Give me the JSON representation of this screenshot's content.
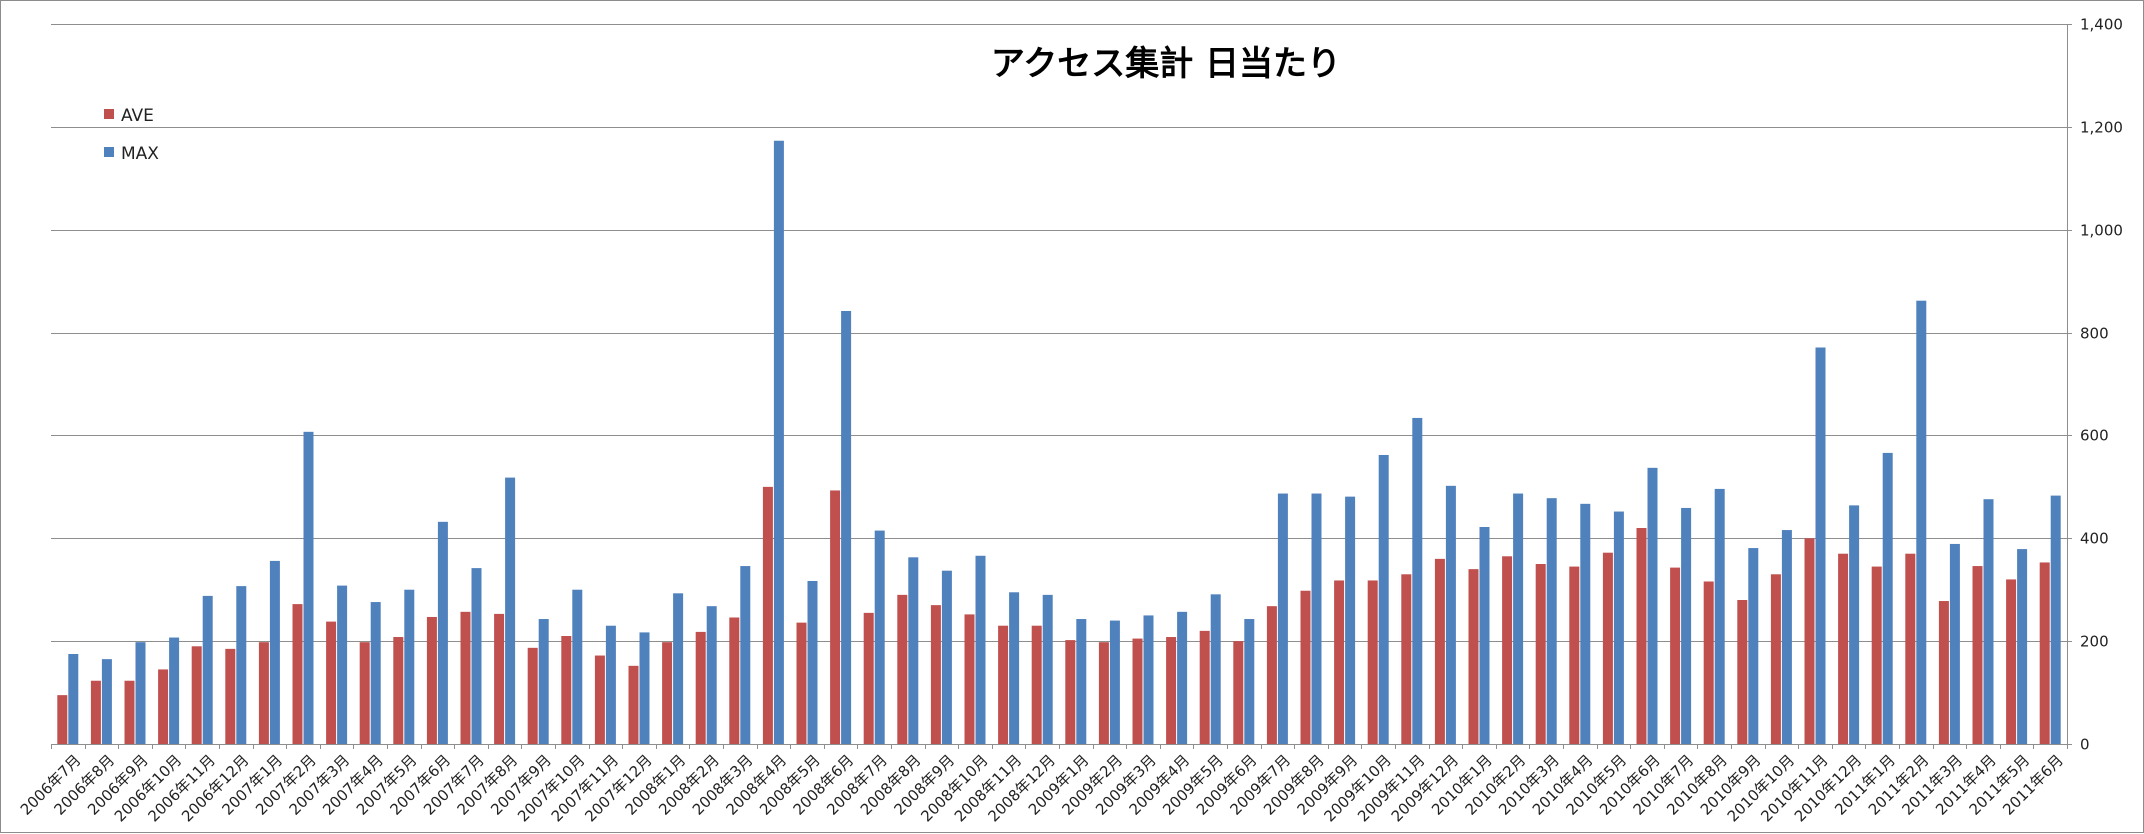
{
  "chart_data": {
    "type": "bar",
    "title": "アクセス集計 日当たり",
    "xlabel": "",
    "ylabel": "",
    "ylim": [
      0,
      1400
    ],
    "ytick_values": [
      0,
      200,
      400,
      600,
      800,
      1000,
      1200,
      1400
    ],
    "ytick_labels": [
      "0",
      "200",
      "400",
      "600",
      "800",
      "1,000",
      "1,200",
      "1,400"
    ],
    "grid": true,
    "legend_position": "top-left",
    "y_axis_side": "right",
    "categories": [
      "2006年7月",
      "2006年8月",
      "2006年9月",
      "2006年10月",
      "2006年11月",
      "2006年12月",
      "2007年1月",
      "2007年2月",
      "2007年3月",
      "2007年4月",
      "2007年5月",
      "2007年6月",
      "2007年7月",
      "2007年8月",
      "2007年9月",
      "2007年10月",
      "2007年11月",
      "2007年12月",
      "2008年1月",
      "2008年2月",
      "2008年3月",
      "2008年4月",
      "2008年5月",
      "2008年6月",
      "2008年7月",
      "2008年8月",
      "2008年9月",
      "2008年10月",
      "2008年11月",
      "2008年12月",
      "2009年1月",
      "2009年2月",
      "2009年3月",
      "2009年4月",
      "2009年5月",
      "2009年6月",
      "2009年7月",
      "2009年8月",
      "2009年9月",
      "2009年10月",
      "2009年11月",
      "2009年12月",
      "2010年1月",
      "2010年2月",
      "2010年3月",
      "2010年4月",
      "2010年5月",
      "2010年6月",
      "2010年7月",
      "2010年8月",
      "2010年9月",
      "2010年10月",
      "2010年11月",
      "2010年12月",
      "2011年1月",
      "2011年2月",
      "2011年3月",
      "2011年4月",
      "2011年5月",
      "2011年6月"
    ],
    "series": [
      {
        "name": "AVE",
        "color": "#c0504d",
        "values": [
          95,
          123,
          123,
          145,
          190,
          185,
          198,
          272,
          238,
          198,
          208,
          247,
          257,
          253,
          187,
          210,
          172,
          152,
          198,
          218,
          246,
          500,
          236,
          493,
          255,
          290,
          270,
          252,
          230,
          230,
          202,
          198,
          205,
          208,
          220,
          200,
          268,
          298,
          318,
          318,
          330,
          360,
          340,
          365,
          350,
          345,
          372,
          420,
          343,
          316,
          280,
          330,
          400,
          370,
          345,
          370,
          278,
          346,
          320,
          353
        ]
      },
      {
        "name": "MAX",
        "color": "#4f81bd",
        "values": [
          175,
          165,
          198,
          207,
          288,
          307,
          356,
          607,
          308,
          276,
          300,
          432,
          342,
          518,
          243,
          300,
          230,
          217,
          293,
          268,
          346,
          1173,
          317,
          842,
          415,
          363,
          337,
          366,
          295,
          290,
          243,
          240,
          250,
          257,
          291,
          243,
          487,
          487,
          481,
          562,
          634,
          502,
          422,
          487,
          478,
          467,
          452,
          537,
          459,
          496,
          381,
          416,
          771,
          464,
          566,
          862,
          389,
          476,
          379,
          483
        ]
      }
    ]
  }
}
